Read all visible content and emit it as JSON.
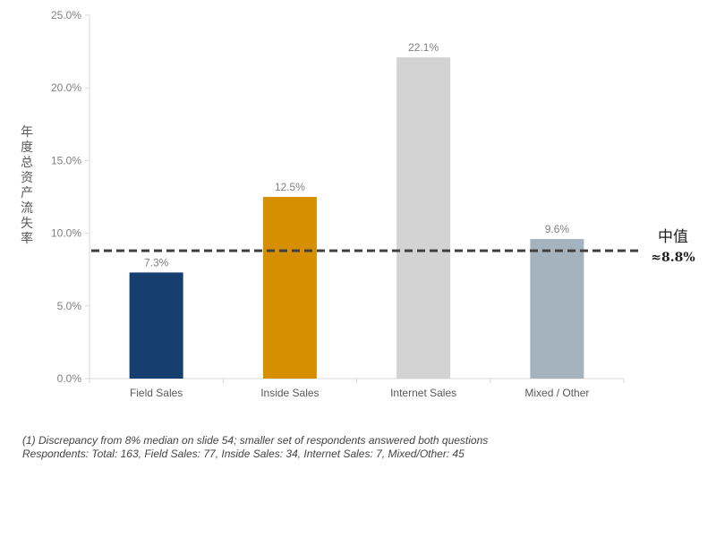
{
  "chart_data": {
    "type": "bar",
    "categories": [
      "Field Sales",
      "Inside Sales",
      "Internet Sales",
      "Mixed / Other"
    ],
    "values": [
      7.3,
      12.5,
      22.1,
      9.6
    ],
    "value_labels": [
      "7.3%",
      "12.5%",
      "22.1%",
      "9.6%"
    ],
    "bar_colors": [
      "#163e6e",
      "#d68f00",
      "#d3d3d3",
      "#a4b3bd"
    ],
    "ylabel": "年度总资产流失率",
    "ylim": [
      0,
      25
    ],
    "yticks": [
      0,
      5,
      10,
      15,
      20,
      25
    ],
    "ytick_labels": [
      "0.0%",
      "5.0%",
      "10.0%",
      "15.0%",
      "20.0%",
      "25.0%"
    ],
    "reference_line": {
      "value": 8.8,
      "style": "dashed",
      "color": "#404040",
      "label_title": "中值",
      "label_value": "≈8.8%"
    },
    "grid": false,
    "legend": "none"
  },
  "footnotes": [
    "(1) Discrepancy from 8% median on slide 54; smaller set of respondents answered both questions",
    "Respondents: Total: 163, Field Sales: 77, Inside Sales: 34, Internet Sales: 7, Mixed/Other: 45"
  ]
}
